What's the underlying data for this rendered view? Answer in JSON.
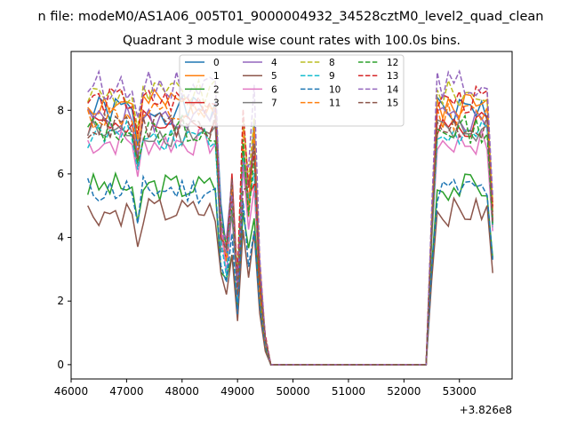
{
  "chart_data": {
    "type": "line",
    "suptitle": "n file: modeM0/AS1A06_005T01_9000004932_34528cztM0_level2_quad_clean",
    "title": "Quadrant 3 module wise count rates with 100.0s bins.",
    "xlabel": "",
    "ylabel": "",
    "x_offset_label": "+3.826e8",
    "xlim": [
      46000,
      53950
    ],
    "ylim": [
      -0.45,
      9.85
    ],
    "xticks": [
      46000,
      47000,
      48000,
      49000,
      50000,
      51000,
      52000,
      53000
    ],
    "yticks": [
      0,
      2,
      4,
      6,
      8
    ],
    "grid": false,
    "legend": {
      "position": "top-center",
      "columns": 4
    },
    "series": [
      {
        "name": "0",
        "color": "#1f77b4",
        "style": "solid",
        "base": 8.0,
        "seed": 1
      },
      {
        "name": "1",
        "color": "#ff7f0e",
        "style": "solid",
        "base": 8.2,
        "seed": 2
      },
      {
        "name": "2",
        "color": "#2ca02c",
        "style": "solid",
        "base": 5.6,
        "seed": 3
      },
      {
        "name": "3",
        "color": "#d62728",
        "style": "solid",
        "base": 7.6,
        "seed": 4
      },
      {
        "name": "4",
        "color": "#9467bd",
        "style": "solid",
        "base": 7.7,
        "seed": 5
      },
      {
        "name": "5",
        "color": "#8c564b",
        "style": "solid",
        "base": 4.8,
        "seed": 6
      },
      {
        "name": "6",
        "color": "#e377c2",
        "style": "solid",
        "base": 7.0,
        "seed": 7
      },
      {
        "name": "7",
        "color": "#7f7f7f",
        "style": "solid",
        "base": 7.3,
        "seed": 8
      },
      {
        "name": "8",
        "color": "#bcbd22",
        "style": "dashed",
        "base": 8.5,
        "seed": 9
      },
      {
        "name": "9",
        "color": "#17becf",
        "style": "dashed",
        "base": 7.2,
        "seed": 10
      },
      {
        "name": "10",
        "color": "#1f77b4",
        "style": "dashed",
        "base": 5.5,
        "seed": 11
      },
      {
        "name": "11",
        "color": "#ff7f0e",
        "style": "dashed",
        "base": 7.8,
        "seed": 12
      },
      {
        "name": "12",
        "color": "#2ca02c",
        "style": "dashed",
        "base": 7.4,
        "seed": 13
      },
      {
        "name": "13",
        "color": "#d62728",
        "style": "dashed",
        "base": 8.3,
        "seed": 14
      },
      {
        "name": "14",
        "color": "#9467bd",
        "style": "dashed",
        "base": 8.8,
        "seed": 15
      },
      {
        "name": "15",
        "color": "#8c564b",
        "style": "dashed",
        "base": 7.5,
        "seed": 16
      }
    ]
  }
}
